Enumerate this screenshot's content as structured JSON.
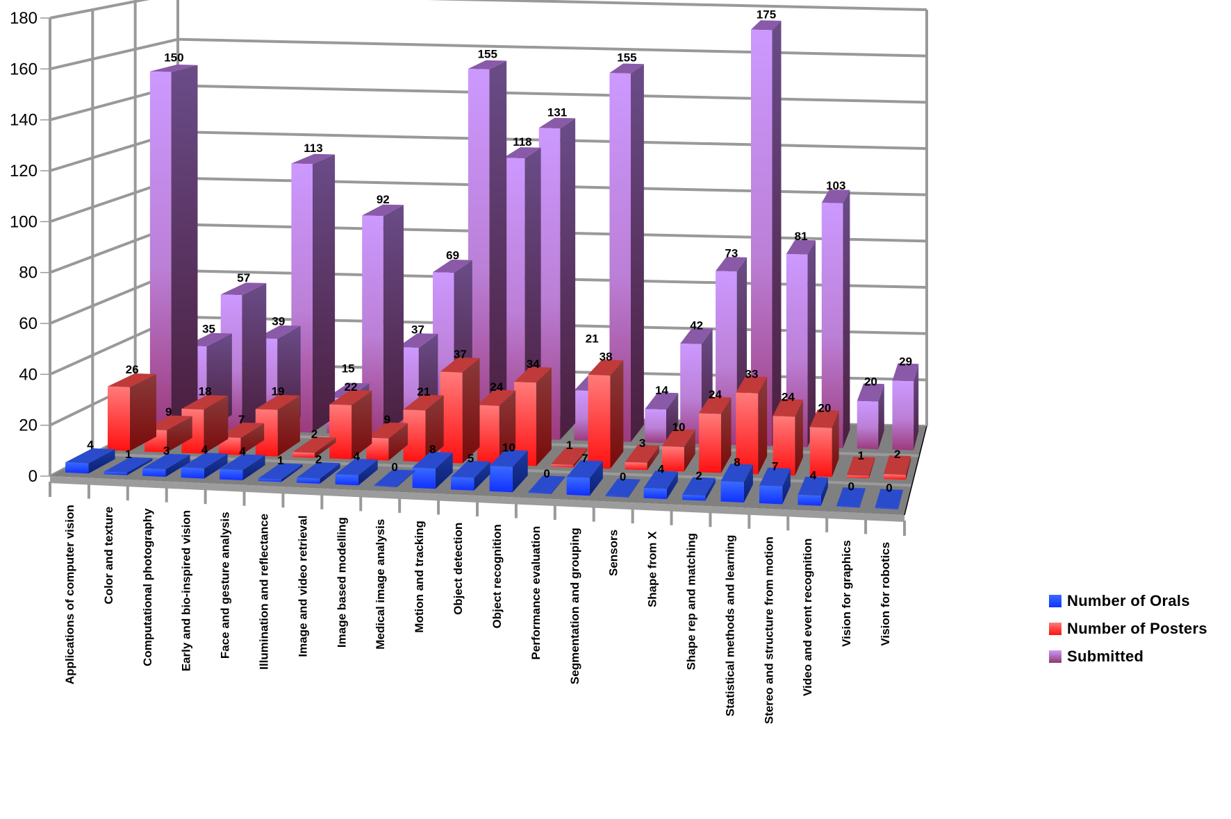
{
  "chart_data": {
    "type": "bar",
    "variant": "3d-grouped-depth",
    "title": "",
    "xlabel": "",
    "ylabel": "",
    "ylim": [
      0,
      180
    ],
    "yticks": [
      0,
      20,
      40,
      60,
      80,
      100,
      120,
      140,
      160,
      180
    ],
    "grid": true,
    "legend_position": "right",
    "categories": [
      "Applications of computer vision",
      "Color and texture",
      "Computational photography",
      "Early and bio-inspired vision",
      "Face and gesture analysis",
      "Illumination and reflectance",
      "Image and video retrieval",
      "Image based modelling",
      "Medical image analysis",
      "Motion and tracking",
      "Object detection",
      "Object recognition",
      "Performance evaluation",
      "Segmentation and grouping",
      "Sensors",
      "Shape from X",
      "Shape rep and matching",
      "Statistical methods and learning",
      "Stereo and structure from motion",
      "Video and event recognition",
      "Vision for graphics",
      "Vision for robotics"
    ],
    "series": [
      {
        "name": "Number of Orals",
        "color": "#2a5cff",
        "values": [
          4,
          1,
          3,
          4,
          4,
          1,
          2,
          4,
          0,
          8,
          5,
          10,
          0,
          7,
          0,
          4,
          2,
          8,
          7,
          4,
          0,
          0
        ]
      },
      {
        "name": "Number of Posters",
        "color": "#ff4a4a",
        "values": [
          26,
          9,
          18,
          7,
          19,
          2,
          22,
          9,
          21,
          37,
          24,
          34,
          1,
          38,
          3,
          10,
          24,
          33,
          24,
          20,
          1,
          2
        ]
      },
      {
        "name": "Submitted",
        "color": "#c694f5",
        "values": [
          150,
          35,
          57,
          39,
          113,
          15,
          92,
          37,
          69,
          155,
          118,
          131,
          21,
          155,
          14,
          42,
          73,
          175,
          81,
          103,
          20,
          29
        ]
      }
    ]
  }
}
